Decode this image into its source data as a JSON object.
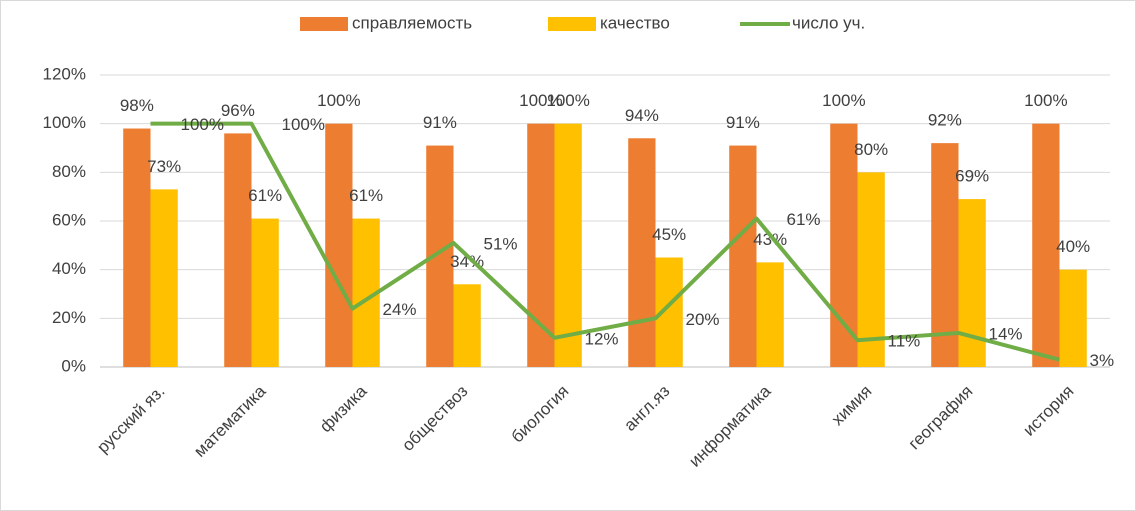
{
  "chart_data": {
    "type": "bar-line",
    "categories": [
      "русский яз.",
      "математика",
      "физика",
      "обществоз",
      "биология",
      "англ.яз",
      "информатика",
      "химия",
      "география",
      "история"
    ],
    "series": [
      {
        "name": "справляемость",
        "type": "bar",
        "color": "#ed7d31",
        "values": [
          98,
          96,
          100,
          91,
          100,
          94,
          91,
          100,
          92,
          100
        ],
        "value_labels": [
          "98%",
          "96%",
          "100%",
          "91%",
          "100%",
          "94%",
          "91%",
          "100%",
          "92%",
          "100%"
        ]
      },
      {
        "name": "качество",
        "type": "bar",
        "color": "#ffc000",
        "values": [
          73,
          61,
          61,
          34,
          100,
          45,
          43,
          80,
          69,
          40
        ],
        "value_labels": [
          "73%",
          "61%",
          "61%",
          "34%",
          "100%",
          "45%",
          "43%",
          "80%",
          "69%",
          "40%"
        ]
      },
      {
        "name": "число уч.",
        "type": "line",
        "color": "#70ad47",
        "values": [
          100,
          100,
          24,
          51,
          12,
          20,
          61,
          11,
          14,
          3
        ],
        "value_labels": [
          "100%",
          "100%",
          "24%",
          "51%",
          "12%",
          "20%",
          "61%",
          "11%",
          "14%",
          "3%"
        ]
      }
    ],
    "ylim": [
      0,
      120
    ],
    "yticks": [
      {
        "value": 0,
        "label": "0%"
      },
      {
        "value": 20,
        "label": "20%"
      },
      {
        "value": 40,
        "label": "40%"
      },
      {
        "value": 60,
        "label": "60%"
      },
      {
        "value": 80,
        "label": "80%"
      },
      {
        "value": 100,
        "label": "100%"
      },
      {
        "value": 120,
        "label": "120%"
      }
    ],
    "grid": true,
    "legend": "top"
  }
}
